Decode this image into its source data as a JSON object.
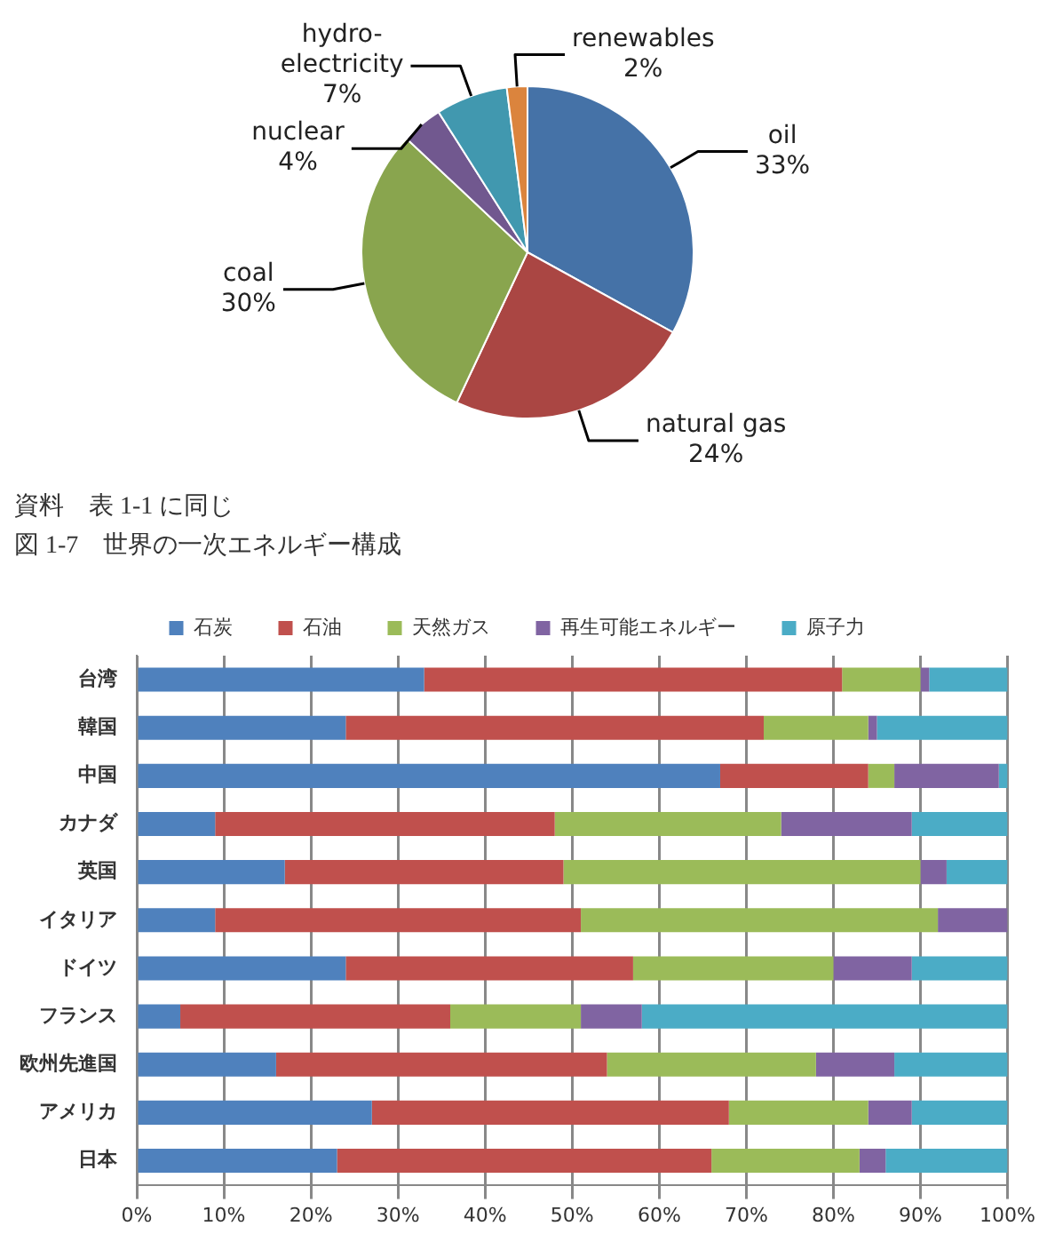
{
  "chart_data": [
    {
      "type": "pie",
      "categories": [
        "oil",
        "natural gas",
        "coal",
        "nuclear",
        "hydro-electricity",
        "renewables"
      ],
      "values": [
        33,
        24,
        30,
        4,
        7,
        2
      ],
      "colors": [
        "#4572a7",
        "#aa4643",
        "#89a54e",
        "#71588f",
        "#4198af",
        "#db843d"
      ],
      "value_labels": [
        "33%",
        "24%",
        "30%",
        "4%",
        "7%",
        "2%"
      ],
      "annotations": [
        "資料　表 1-1 に同じ"
      ]
    },
    {
      "type": "bar",
      "title": "図 1-7　世界の一次エネルギー構成",
      "orientation": "horizontal",
      "stacked": true,
      "categories": [
        "台湾",
        "韓国",
        "中国",
        "カナダ",
        "英国",
        "イタリア",
        "ドイツ",
        "フランス",
        "欧州先進国",
        "アメリカ",
        "日本"
      ],
      "series": [
        {
          "name": "石炭",
          "color": "#4f81bd",
          "values": [
            33,
            24,
            67,
            9,
            17,
            9,
            24,
            5,
            16,
            27,
            23
          ]
        },
        {
          "name": "石油",
          "color": "#c0504d",
          "values": [
            48,
            48,
            17,
            39,
            32,
            42,
            33,
            31,
            38,
            41,
            43
          ]
        },
        {
          "name": "天然ガス",
          "color": "#9bbb59",
          "values": [
            9,
            12,
            3,
            26,
            41,
            41,
            23,
            15,
            24,
            16,
            17
          ]
        },
        {
          "name": "再生可能エネルギー",
          "color": "#8064a2",
          "values": [
            1,
            1,
            12,
            15,
            3,
            8,
            9,
            7,
            9,
            5,
            3
          ]
        },
        {
          "name": "原子力",
          "color": "#4bacc6",
          "values": [
            9,
            15,
            1,
            11,
            7,
            0,
            11,
            42,
            13,
            11,
            14
          ]
        }
      ],
      "xlim": [
        0,
        100
      ],
      "xticks": [
        {
          "value": 0,
          "label": "0%"
        },
        {
          "value": 10,
          "label": "10%"
        },
        {
          "value": 20,
          "label": "20%"
        },
        {
          "value": 30,
          "label": "30%"
        },
        {
          "value": 40,
          "label": "40%"
        },
        {
          "value": 50,
          "label": "50%"
        },
        {
          "value": 60,
          "label": "60%"
        },
        {
          "value": 70,
          "label": "70%"
        },
        {
          "value": 80,
          "label": "80%"
        },
        {
          "value": 90,
          "label": "90%"
        },
        {
          "value": 100,
          "label": "100%"
        }
      ],
      "grid": "x",
      "legend": "top"
    }
  ]
}
